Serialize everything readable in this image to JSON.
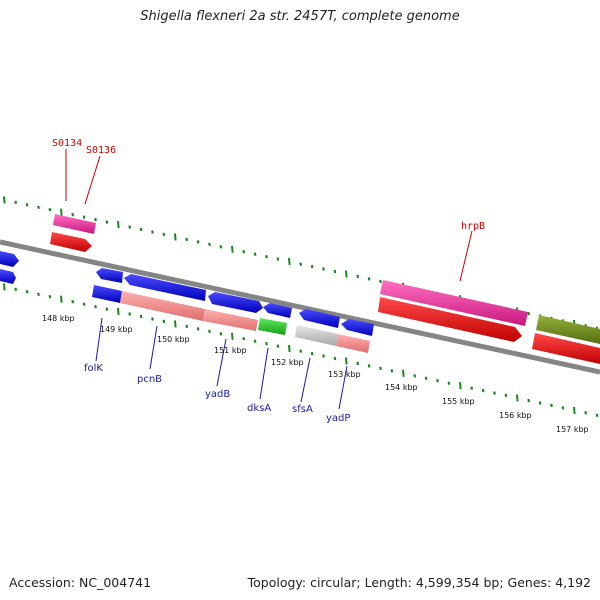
{
  "title": "Shigella flexneri 2a str. 2457T, complete genome",
  "footer": {
    "accession": "Accession: NC_004741",
    "summary": "Topology: circular; Length: 4,599,354 bp; Genes: 4,192"
  },
  "scale_labels": [
    "148 kbp",
    "149 kbp",
    "150 kbp",
    "151 kbp",
    "152 kbp",
    "153 kbp",
    "154 kbp",
    "155 kbp",
    "156 kbp",
    "157 kbp"
  ],
  "gene_labels": {
    "top": [
      "S0134",
      "S0136",
      "hrpB"
    ],
    "bottom": [
      "folK",
      "pcnB",
      "yadB",
      "dksA",
      "sfsA",
      "yadP"
    ]
  },
  "colors": {
    "cds_blue": "#1010e0",
    "cds_pink": "#ee3e9e",
    "cds_red": "#ee1010",
    "cds_salmon": "#f08c8c",
    "cds_green": "#2ec42e",
    "cds_olive": "#6f8a20",
    "cds_grey": "#c8c8c8",
    "tick_green": "#1a8a1a",
    "backbone": "#888888"
  }
}
